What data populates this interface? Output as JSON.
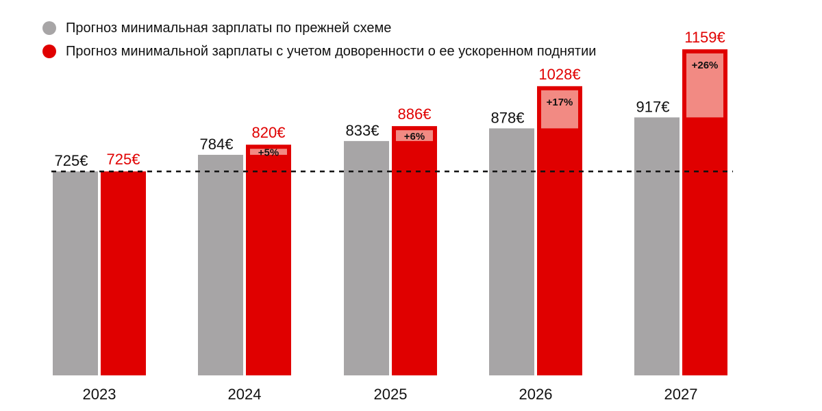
{
  "chart_data": {
    "type": "bar",
    "categories": [
      "2023",
      "2024",
      "2025",
      "2026",
      "2027"
    ],
    "series": [
      {
        "name": "Прогноз минимальная зарплаты по прежней схеме",
        "color": "#a7a5a6",
        "values": [
          725,
          784,
          833,
          878,
          917
        ],
        "labels": [
          "725€",
          "784€",
          "833€",
          "878€",
          "917€"
        ]
      },
      {
        "name": "Прогноз минимальной зарплаты с учетом доворенности о ее ускоренном поднятии",
        "color": "#e00000",
        "values": [
          725,
          820,
          886,
          1028,
          1159
        ],
        "labels": [
          "725€",
          "820€",
          "886€",
          "1028€",
          "1159€"
        ]
      }
    ],
    "increase_labels": [
      "",
      "+5%",
      "+6%",
      "+17%",
      "+26%"
    ],
    "increase_color": "#f28a83",
    "reference_line": {
      "value": 725,
      "style": "dashed"
    },
    "ylim": [
      0,
      1159
    ],
    "grid": false,
    "legend_position": "top-left",
    "title": "",
    "xlabel": "",
    "ylabel": ""
  }
}
